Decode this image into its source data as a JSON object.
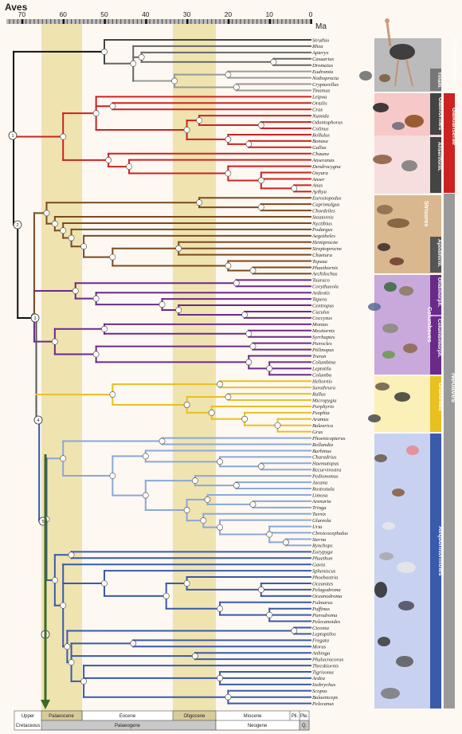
{
  "title": "Aves",
  "axis": {
    "unit": "Ma",
    "ticks": [
      70,
      60,
      50,
      40,
      30,
      20,
      10,
      0
    ]
  },
  "taxa": [
    "Struthio",
    "Rhea",
    "Apteryx",
    "Casuarius",
    "Dromaius",
    "Eudromia",
    "Nothoprocta",
    "Crypturellus",
    "Tinamus",
    "Leipoa",
    "Ortalis",
    "Crax",
    "Numida",
    "Odontophorus",
    "Colinus",
    "Rollulus",
    "Bonasa",
    "Gallus",
    "Chauna",
    "Anseranas",
    "Dendrocygna",
    "Oxyura",
    "Anser",
    "Anas",
    "Aythya",
    "Eurostopodus",
    "Caprimulgus",
    "Chordeiles",
    "Steatornis",
    "Nyctibius",
    "Podargus",
    "Aegotheles",
    "Hemiprocne",
    "Streptoprocne",
    "Chaetura",
    "Topaza",
    "Phaethornis",
    "Archilochus",
    "Tauraco",
    "Corythaeola",
    "Ardeotis",
    "Tapera",
    "Centropus",
    "Cuculus",
    "Coccyzus",
    "Monias",
    "Mesitornis",
    "Syrrhaptes",
    "Pterocles",
    "Ptilinopus",
    "Treron",
    "Columbina",
    "Leptotila",
    "Columba",
    "Heliornis",
    "Sarothrura",
    "Rallus",
    "Micropygia",
    "Porphyrio",
    "Psophia",
    "Aramus",
    "Balearica",
    "Grus",
    "Phoenicopterus",
    "Rollandia",
    "Burhinus",
    "Charadrius",
    "Haematopus",
    "Recurvirostra",
    "Pedionomus",
    "Jacana",
    "Rostratula",
    "Limosa",
    "Arenaria",
    "Tringa",
    "Turnix",
    "Glareola",
    "Uria",
    "Chroicocephalus",
    "Sterna",
    "Rynchops",
    "Eurypyga",
    "Phaethon",
    "Gavia",
    "Spheniscus",
    "Phoebastria",
    "Oceanites",
    "Pelagodroma",
    "Oceanodroma",
    "Fulmarus",
    "Puffinus",
    "Pterodroma",
    "Pelecanoides",
    "Ciconia",
    "Leptoptilos",
    "Fregata",
    "Morus",
    "Anhinga",
    "Phalacrocorax",
    "Threskiornis",
    "Tigrisoma",
    "Ardea",
    "Ixobrychus",
    "Scopus",
    "Balaeniceps",
    "Pelecanus"
  ],
  "clades": {
    "palaeognathae": "Palaeognathae",
    "tinam": "Tinam.",
    "galliformes": "Galliformes",
    "galloanserae": "Galloanserae",
    "anseriform": "Anseriform.",
    "strisores": "Strisores",
    "apodiform": "Apodiform.",
    "columbaves": "Columbaves",
    "otidimorph": "Otidimorph.",
    "columbimorph": "Columbimorph.",
    "gruiformes": "Gruiformes",
    "aequorlitornithes": "Aequorlitornithes",
    "neoaves": "Neoaves"
  },
  "timescale": {
    "epochs": [
      "Upper",
      "Palaeocene",
      "Eocene",
      "Oligocene",
      "Miocene",
      "Pli.",
      "Ple."
    ],
    "periods": [
      "Cretaceous",
      "Palaeogene",
      "Neogene",
      "Q."
    ]
  },
  "node_labels": {
    "n1": "1",
    "n2": "2",
    "n3": "3",
    "n4": "4",
    "n5": "5",
    "n6": "6"
  },
  "colors": {
    "palaeognathae": "#555555",
    "galloanserae": "#cc2222",
    "strisores": "#7a4a20",
    "columbaves": "#6a2a8a",
    "gruiformes": "#e8c020",
    "aequorlitornithes": "#3a5aaa",
    "neoaves_bar": "#9a9a9a",
    "highlight": "#efe3b0"
  }
}
